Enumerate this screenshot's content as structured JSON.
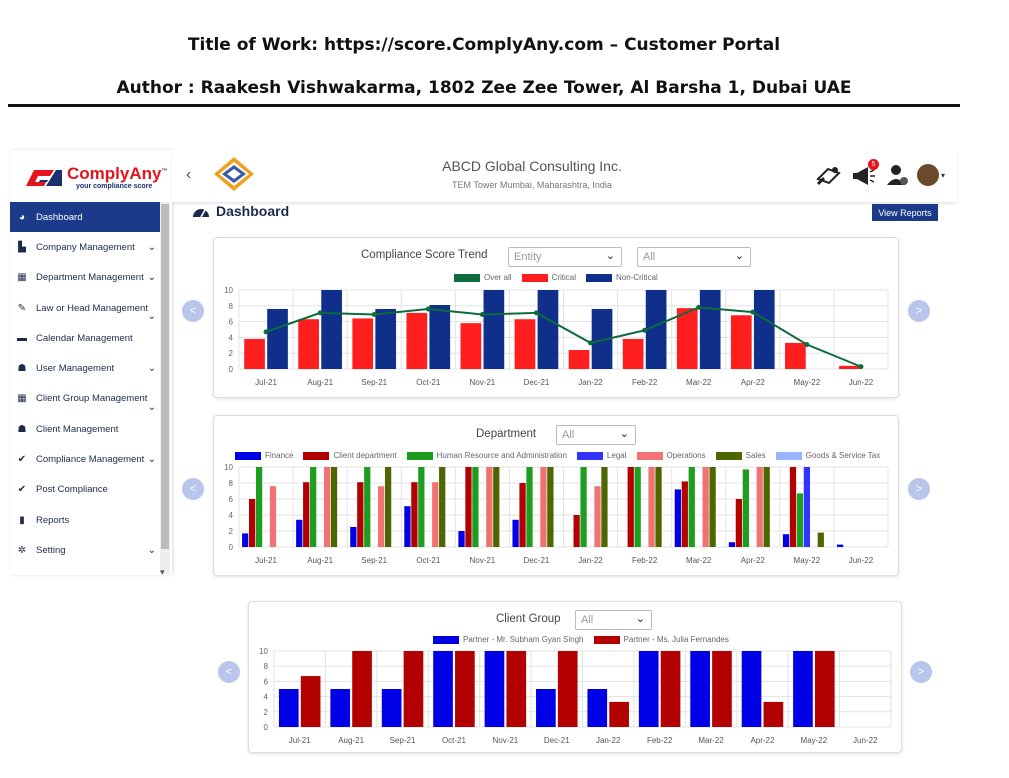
{
  "doc": {
    "title_line": "Title of Work: https://score.ComplyAny.com – Customer Portal",
    "author_line": "Author : Raakesh Vishwakarma, 1802 Zee Zee Tower, Al Barsha 1, Dubai UAE"
  },
  "brand": {
    "name": "ComplyAny",
    "tm": "™",
    "tagline": "your compliance score",
    "red": "#e3141b",
    "navy": "#1a2f6e"
  },
  "header": {
    "company": "ABCD Global Consulting Inc.",
    "address": "TEM Tower Mumbai, Maharashtra, India",
    "notification_count": "5",
    "back": "‹",
    "avatar_caret": "▾"
  },
  "sidebar": {
    "items": [
      {
        "label": "Dashboard",
        "icon": "speedometer-icon",
        "glyph": "◕",
        "active": true,
        "chevron": ""
      },
      {
        "label": "Company Management",
        "icon": "factory-icon",
        "glyph": "▙",
        "chevron": "⌄"
      },
      {
        "label": "Department Management",
        "icon": "building-icon",
        "glyph": "▦",
        "chevron": "⌄"
      },
      {
        "label": "Law or Head Management",
        "icon": "gavel-icon",
        "glyph": "✎",
        "chevron": "⌄"
      },
      {
        "label": "Calendar Management",
        "icon": "calendar-icon",
        "glyph": "▬",
        "chevron": ""
      },
      {
        "label": "User Management",
        "icon": "users-icon",
        "glyph": "☗",
        "chevron": "⌄"
      },
      {
        "label": "Client Group Management",
        "icon": "building-icon",
        "glyph": "▦",
        "chevron": "⌄"
      },
      {
        "label": "Client Management",
        "icon": "users-icon",
        "glyph": "☗",
        "chevron": ""
      },
      {
        "label": "Compliance Management",
        "icon": "check-icon",
        "glyph": "✔",
        "chevron": "⌄"
      },
      {
        "label": "Post Compliance",
        "icon": "check-circle-icon",
        "glyph": "✔",
        "chevron": ""
      },
      {
        "label": "Reports",
        "icon": "document-icon",
        "glyph": "▮",
        "chevron": ""
      },
      {
        "label": "Setting",
        "icon": "gears-icon",
        "glyph": "✲",
        "chevron": "⌄"
      }
    ],
    "scroll_down": "▾"
  },
  "dashboard": {
    "title": "Dashboard",
    "view_reports": "View Reports",
    "prev": "<",
    "next": ">"
  },
  "chart1": {
    "title": "Compliance Score Trend",
    "entity_placeholder": "Entity",
    "filter_value": "All",
    "legend": [
      {
        "label": "Over all",
        "color": "#0d6b3e"
      },
      {
        "label": "Critical",
        "color": "#ff1e1e"
      },
      {
        "label": "Non-Critical",
        "color": "#0f2f8a"
      }
    ]
  },
  "chart2": {
    "title": "Department",
    "filter_value": "All",
    "legend": [
      {
        "label": "Finance",
        "color": "#0000e6"
      },
      {
        "label": "Client department",
        "color": "#b30000"
      },
      {
        "label": "Human Resource and Administration",
        "color": "#1e9e1e"
      },
      {
        "label": "Legal",
        "color": "#3333ff"
      },
      {
        "label": "Operations",
        "color": "#f07272"
      },
      {
        "label": "Sales",
        "color": "#4d6600"
      },
      {
        "label": "Goods & Service Tax",
        "color": "#99b3ff"
      }
    ]
  },
  "chart3": {
    "title": "Client Group",
    "filter_value": "All",
    "legend": [
      {
        "label": "Partner - Mr. Subham Gyan Singh",
        "color": "#0000e6"
      },
      {
        "label": "Partner - Ms. Julia Fernandes",
        "color": "#b30000"
      }
    ]
  },
  "chart_data": [
    {
      "type": "bar",
      "title": "Compliance Score Trend",
      "categories": [
        "Jul-21",
        "Aug-21",
        "Sep-21",
        "Oct-21",
        "Nov-21",
        "Dec-21",
        "Jan-22",
        "Feb-22",
        "Mar-22",
        "Apr-22",
        "May-22",
        "Jun-22"
      ],
      "ylim": [
        0,
        10
      ],
      "yticks": [
        0,
        2,
        4,
        6,
        8,
        10
      ],
      "series": [
        {
          "name": "Critical",
          "kind": "bar",
          "color": "#ff1e1e",
          "values": [
            3.8,
            6.3,
            6.4,
            7.1,
            5.8,
            6.3,
            2.4,
            3.8,
            7.7,
            6.8,
            3.3,
            0.4
          ]
        },
        {
          "name": "Non-Critical",
          "kind": "bar",
          "color": "#0f2f8a",
          "values": [
            7.6,
            10,
            7.6,
            8.1,
            10,
            10,
            7.6,
            10,
            10,
            10,
            null,
            null
          ]
        },
        {
          "name": "Over all",
          "kind": "line",
          "color": "#0d6b3e",
          "values": [
            4.7,
            7.1,
            6.9,
            7.6,
            6.9,
            7.1,
            3.3,
            4.9,
            7.8,
            7.2,
            3.1,
            0.3
          ]
        }
      ]
    },
    {
      "type": "bar",
      "title": "Department",
      "categories": [
        "Jul-21",
        "Aug-21",
        "Sep-21",
        "Oct-21",
        "Nov-21",
        "Dec-21",
        "Jan-22",
        "Feb-22",
        "Mar-22",
        "Apr-22",
        "May-22",
        "Jun-22"
      ],
      "ylim": [
        0,
        10
      ],
      "yticks": [
        0,
        2,
        4,
        6,
        8,
        10
      ],
      "series": [
        {
          "name": "Finance",
          "color": "#0000e6",
          "values": [
            1.7,
            3.4,
            2.5,
            5.1,
            2.0,
            3.4,
            0,
            0,
            7.2,
            0.6,
            1.6,
            0.3
          ]
        },
        {
          "name": "Client department",
          "color": "#b30000",
          "values": [
            6.0,
            8.1,
            8.1,
            8.1,
            10,
            8.0,
            4.0,
            10,
            8.2,
            6.0,
            10,
            0
          ]
        },
        {
          "name": "Human Resource and Administration",
          "color": "#1e9e1e",
          "values": [
            10,
            10,
            10,
            10,
            10,
            10,
            10,
            10,
            10,
            9.7,
            6.7,
            0
          ]
        },
        {
          "name": "Legal",
          "color": "#3333ff",
          "values": [
            0,
            0,
            0,
            0,
            0,
            0,
            0,
            0,
            0,
            0,
            10,
            0
          ]
        },
        {
          "name": "Operations",
          "color": "#f07272",
          "values": [
            7.6,
            10,
            7.6,
            8.1,
            10,
            10,
            7.6,
            10,
            10,
            10,
            0,
            0
          ]
        },
        {
          "name": "Sales",
          "color": "#4d6600",
          "values": [
            0,
            10,
            10,
            10,
            10,
            10,
            10,
            10,
            10,
            10,
            1.8,
            0
          ]
        },
        {
          "name": "Goods & Service Tax",
          "color": "#99b3ff",
          "values": [
            0,
            0,
            0,
            0,
            0,
            0,
            0,
            0,
            0,
            0,
            0,
            0
          ]
        }
      ]
    },
    {
      "type": "bar",
      "title": "Client Group",
      "categories": [
        "Jul-21",
        "Aug-21",
        "Sep-21",
        "Oct-21",
        "Nov-21",
        "Dec-21",
        "Jan-22",
        "Feb-22",
        "Mar-22",
        "Apr-22",
        "May-22",
        "Jun-22"
      ],
      "ylim": [
        0,
        10
      ],
      "yticks": [
        0,
        2,
        4,
        6,
        8,
        10
      ],
      "series": [
        {
          "name": "Partner - Mr. Subham Gyan Singh",
          "color": "#0000e6",
          "values": [
            5.0,
            5.0,
            5.0,
            10,
            10,
            5.0,
            5.0,
            10,
            10,
            10,
            10,
            0
          ]
        },
        {
          "name": "Partner - Ms. Julia Fernandes",
          "color": "#b30000",
          "values": [
            6.7,
            10,
            10,
            10,
            10,
            10,
            3.3,
            10,
            10,
            3.3,
            10,
            0
          ]
        }
      ]
    }
  ]
}
